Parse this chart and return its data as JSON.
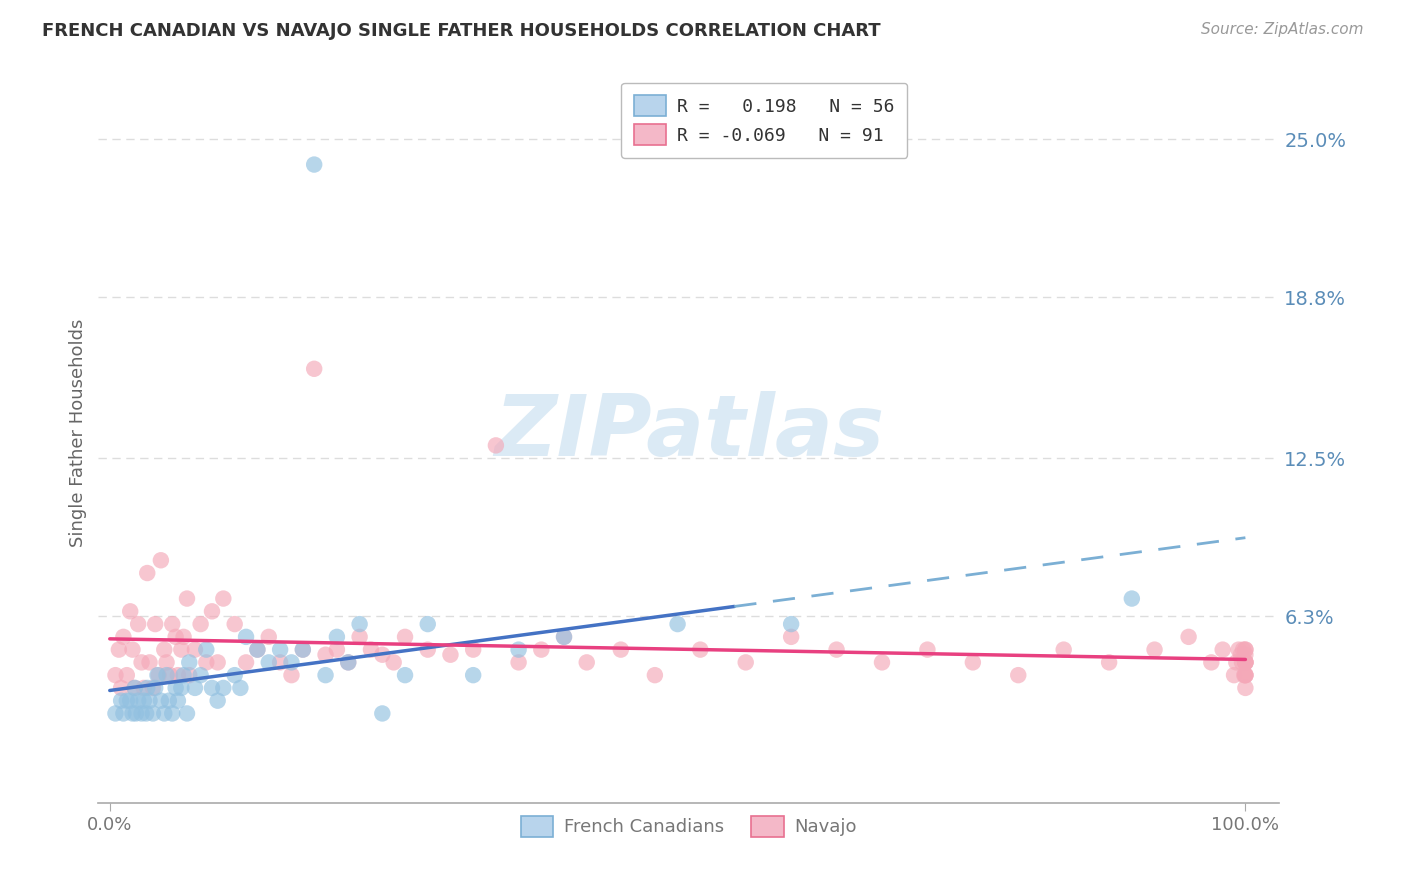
{
  "title": "FRENCH CANADIAN VS NAVAJO SINGLE FATHER HOUSEHOLDS CORRELATION CHART",
  "source": "Source: ZipAtlas.com",
  "ylabel": "Single Father Households",
  "ytick_values": [
    0.0,
    0.063,
    0.125,
    0.188,
    0.25
  ],
  "ytick_labels": [
    "",
    "6.3%",
    "12.5%",
    "18.8%",
    "25.0%"
  ],
  "color_blue": "#91C0E0",
  "color_pink": "#F4A8B8",
  "trendline_blue": "#4472C4",
  "trendline_pink": "#E84080",
  "trendline_blue_dashed": "#7BAFD4",
  "fc_R": 0.198,
  "fc_N": 56,
  "nav_R": -0.069,
  "nav_N": 91,
  "french_canadians_x": [
    0.005,
    0.01,
    0.012,
    0.015,
    0.018,
    0.02,
    0.022,
    0.023,
    0.025,
    0.028,
    0.03,
    0.032,
    0.033,
    0.035,
    0.038,
    0.04,
    0.042,
    0.045,
    0.048,
    0.05,
    0.052,
    0.055,
    0.058,
    0.06,
    0.063,
    0.065,
    0.068,
    0.07,
    0.075,
    0.08,
    0.085,
    0.09,
    0.095,
    0.1,
    0.11,
    0.115,
    0.12,
    0.13,
    0.14,
    0.15,
    0.16,
    0.17,
    0.18,
    0.19,
    0.2,
    0.21,
    0.22,
    0.24,
    0.26,
    0.28,
    0.32,
    0.36,
    0.4,
    0.5,
    0.6,
    0.9
  ],
  "french_canadians_y": [
    0.025,
    0.03,
    0.025,
    0.03,
    0.03,
    0.025,
    0.035,
    0.025,
    0.03,
    0.025,
    0.03,
    0.025,
    0.035,
    0.03,
    0.025,
    0.035,
    0.04,
    0.03,
    0.025,
    0.04,
    0.03,
    0.025,
    0.035,
    0.03,
    0.035,
    0.04,
    0.025,
    0.045,
    0.035,
    0.04,
    0.05,
    0.035,
    0.03,
    0.035,
    0.04,
    0.035,
    0.055,
    0.05,
    0.045,
    0.05,
    0.045,
    0.05,
    0.24,
    0.04,
    0.055,
    0.045,
    0.06,
    0.025,
    0.04,
    0.06,
    0.04,
    0.05,
    0.055,
    0.06,
    0.06,
    0.07
  ],
  "navajo_x": [
    0.005,
    0.008,
    0.01,
    0.012,
    0.015,
    0.018,
    0.02,
    0.022,
    0.025,
    0.028,
    0.03,
    0.033,
    0.035,
    0.038,
    0.04,
    0.043,
    0.045,
    0.048,
    0.05,
    0.053,
    0.055,
    0.058,
    0.06,
    0.063,
    0.065,
    0.068,
    0.07,
    0.075,
    0.08,
    0.085,
    0.09,
    0.095,
    0.1,
    0.11,
    0.12,
    0.13,
    0.14,
    0.15,
    0.16,
    0.17,
    0.18,
    0.19,
    0.2,
    0.21,
    0.22,
    0.23,
    0.24,
    0.25,
    0.26,
    0.28,
    0.3,
    0.32,
    0.34,
    0.36,
    0.38,
    0.4,
    0.42,
    0.45,
    0.48,
    0.52,
    0.56,
    0.6,
    0.64,
    0.68,
    0.72,
    0.76,
    0.8,
    0.84,
    0.88,
    0.92,
    0.95,
    0.97,
    0.98,
    0.99,
    0.992,
    0.994,
    0.996,
    0.997,
    0.998,
    0.999,
    1.0,
    1.0,
    1.0,
    1.0,
    1.0,
    1.0,
    1.0,
    1.0,
    1.0,
    1.0,
    1.0
  ],
  "navajo_y": [
    0.04,
    0.05,
    0.035,
    0.055,
    0.04,
    0.065,
    0.05,
    0.035,
    0.06,
    0.045,
    0.035,
    0.08,
    0.045,
    0.035,
    0.06,
    0.04,
    0.085,
    0.05,
    0.045,
    0.04,
    0.06,
    0.055,
    0.04,
    0.05,
    0.055,
    0.07,
    0.04,
    0.05,
    0.06,
    0.045,
    0.065,
    0.045,
    0.07,
    0.06,
    0.045,
    0.05,
    0.055,
    0.045,
    0.04,
    0.05,
    0.16,
    0.048,
    0.05,
    0.045,
    0.055,
    0.05,
    0.048,
    0.045,
    0.055,
    0.05,
    0.048,
    0.05,
    0.13,
    0.045,
    0.05,
    0.055,
    0.045,
    0.05,
    0.04,
    0.05,
    0.045,
    0.055,
    0.05,
    0.045,
    0.05,
    0.045,
    0.04,
    0.05,
    0.045,
    0.05,
    0.055,
    0.045,
    0.05,
    0.04,
    0.045,
    0.05,
    0.048,
    0.045,
    0.05,
    0.04,
    0.045,
    0.04,
    0.05,
    0.048,
    0.045,
    0.05,
    0.04,
    0.045,
    0.04,
    0.035,
    0.045
  ],
  "watermark_text": "ZIPatlas",
  "watermark_color": "#D8E8F4",
  "bg_color": "#FFFFFF",
  "grid_color": "#DDDDDD",
  "spine_color": "#AAAAAA"
}
